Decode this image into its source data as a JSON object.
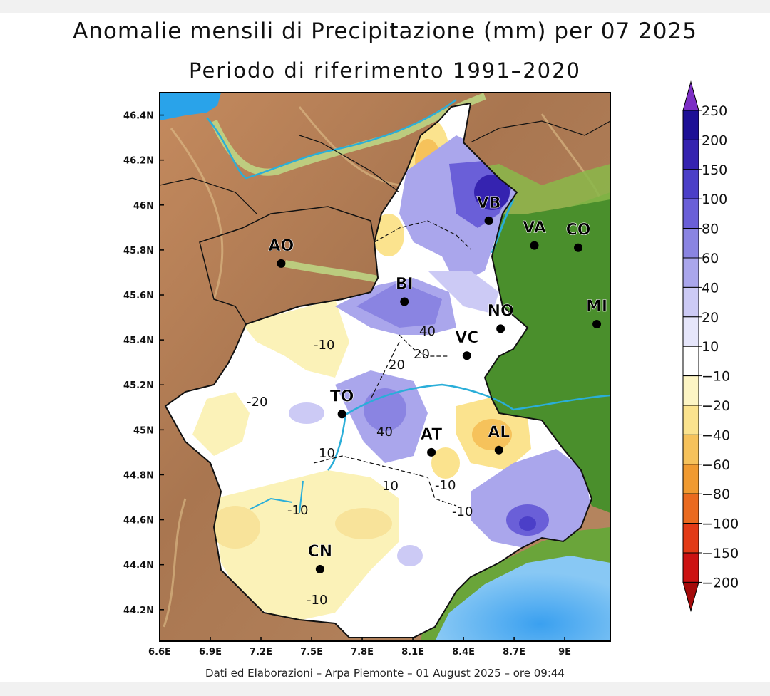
{
  "title": "Anomalie mensili di Precipitazione (mm) per 07 2025",
  "subtitle": "Periodo di riferimento 1991–2020",
  "footer": "Dati ed Elaborazioni – Arpa Piemonte – 01 August 2025 – ore 09:44",
  "lat_ticks": [
    "46.4N",
    "46.2N",
    "46N",
    "45.8N",
    "45.6N",
    "45.4N",
    "45.2N",
    "45N",
    "44.8N",
    "44.6N",
    "44.4N",
    "44.2N"
  ],
  "lon_ticks": [
    "6.6E",
    "6.9E",
    "7.2E",
    "7.5E",
    "7.8E",
    "8.1E",
    "8.4E",
    "8.7E",
    "9E"
  ],
  "cities": [
    {
      "code": "AO",
      "lon": 7.32,
      "lat": 45.74
    },
    {
      "code": "VB",
      "lon": 8.55,
      "lat": 45.93
    },
    {
      "code": "VA",
      "lon": 8.82,
      "lat": 45.82
    },
    {
      "code": "CO",
      "lon": 9.08,
      "lat": 45.81
    },
    {
      "code": "BI",
      "lon": 8.05,
      "lat": 45.57
    },
    {
      "code": "NO",
      "lon": 8.62,
      "lat": 45.45
    },
    {
      "code": "MI",
      "lon": 9.19,
      "lat": 45.47
    },
    {
      "code": "VC",
      "lon": 8.42,
      "lat": 45.33
    },
    {
      "code": "TO",
      "lon": 7.68,
      "lat": 45.07
    },
    {
      "code": "AT",
      "lon": 8.21,
      "lat": 44.9
    },
    {
      "code": "AL",
      "lon": 8.61,
      "lat": 44.91
    },
    {
      "code": "CN",
      "lon": 7.55,
      "lat": 44.38
    }
  ],
  "contour_labels": [
    "-10",
    "-20",
    "40",
    "20",
    "20",
    "40",
    "10",
    "10",
    "-10",
    "-10",
    "-10",
    "-10"
  ],
  "legend": {
    "labels": [
      "250",
      "200",
      "150",
      "100",
      "80",
      "60",
      "40",
      "20",
      "10",
      "−10",
      "−20",
      "−40",
      "−60",
      "−80",
      "−100",
      "−150",
      "−200"
    ],
    "colors": [
      "#7c2ec4",
      "#1d1096",
      "#3523b0",
      "#4b3fc8",
      "#6a5fd8",
      "#8a84e2",
      "#aaa6ec",
      "#cccaf5",
      "#e6e6fb",
      "#ffffff",
      "#fdf5c4",
      "#fbe38e",
      "#f6c25b",
      "#f09a30",
      "#ea6a1f",
      "#e23a16",
      "#cc1212",
      "#a40a0a"
    ]
  },
  "colors": {
    "lombardy_plain": "#4a8f2c",
    "lake": "#29a3ea",
    "river": "#2aaed9",
    "mountain": "#b07852"
  }
}
